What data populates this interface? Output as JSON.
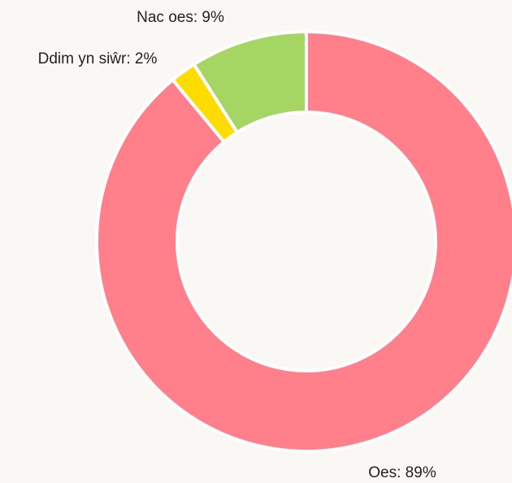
{
  "chart_data": {
    "type": "donut",
    "values": [
      89,
      2,
      9
    ],
    "value_labels": [
      "Oes: 89%",
      "Ddim yn siŵr: 2%",
      "Nac oes: 9%"
    ],
    "colors": [
      "#ff7f8a",
      "#ffdc00",
      "#a5d562"
    ]
  }
}
